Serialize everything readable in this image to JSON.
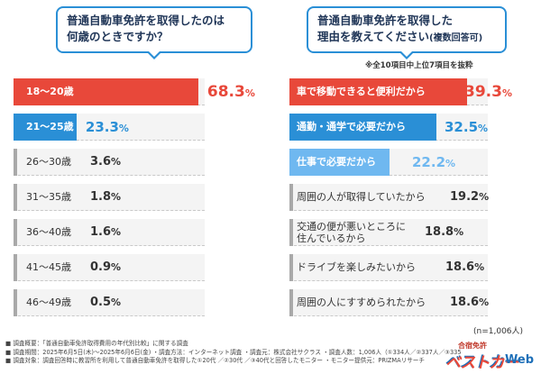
{
  "questions": {
    "left": {
      "line1": "普通自動車免許を取得したのは",
      "line2": "何歳のときですか？"
    },
    "right": {
      "line1": "普通自動車免許を取得した",
      "line2": "理由を教えてください",
      "line2_sub": "(複数回答可)"
    }
  },
  "note": "※全10項目中上位7項目を抜粋",
  "sample_size": "(n=1,006人)",
  "chart_data": [
    {
      "type": "bar",
      "orientation": "horizontal",
      "title": "普通自動車免許を取得したのは何歳のときですか？",
      "categories": [
        "18〜20歳",
        "21〜25歳",
        "26〜30歳",
        "31〜35歳",
        "36〜40歳",
        "41〜45歳",
        "46〜49歳"
      ],
      "values": [
        68.3,
        23.3,
        3.6,
        1.8,
        1.6,
        0.9,
        0.5
      ],
      "unit": "%",
      "xlim": [
        0,
        100
      ]
    },
    {
      "type": "bar",
      "orientation": "horizontal",
      "title": "普通自動車免許を取得した理由を教えてください(複数回答可)",
      "categories": [
        "車で移動できると便利だから",
        "通勤・通学で必要だから",
        "仕事で必要だから",
        "周囲の人が取得していたから",
        "交通の便が悪いところに住んでいるから",
        "ドライブを楽しみたいから",
        "周囲の人にすすめられたから"
      ],
      "category_lines": [
        [
          "車で移動できると便利だから"
        ],
        [
          "通勤・通学で必要だから"
        ],
        [
          "仕事で必要だから"
        ],
        [
          "周囲の人が取得していたから"
        ],
        [
          "交通の便が悪いところに",
          "住んでいるから"
        ],
        [
          "ドライブを楽しみたいから"
        ],
        [
          "周囲の人にすすめられたから"
        ]
      ],
      "values": [
        39.3,
        32.5,
        22.2,
        19.2,
        18.8,
        18.6,
        18.6
      ],
      "unit": "%",
      "xlim": [
        0,
        100
      ]
    }
  ],
  "colors": {
    "first": "#e8483a",
    "second": "#2a8fd6",
    "third": "#6fb8f0",
    "neutral": "#a9a9a9",
    "track": "#f4f4f4",
    "frame": "#2a8fd6"
  },
  "footer": {
    "lines": [
      "■ 調査概要：「普通自動車免許取得費用の年代別比較」に関する調査",
      "■ 調査期間：2025年6月5日(木)〜2025年6月6日(金) ・調査方法：インターネット調査 ・調査元：株式会社サクラス ・調査人数：1,006人（①334人／②337人／③335人）",
      "■ 調査対象：調査回答時に教習所を利用して普通自動車免許を取得した①20代 ／②30代 ／③40代と回答したモニター ・モニター提供元：PRIZMAリサーチ"
    ]
  },
  "logo": {
    "top": "合宿免許",
    "main": "ベストカー",
    "suffix": "Web"
  }
}
